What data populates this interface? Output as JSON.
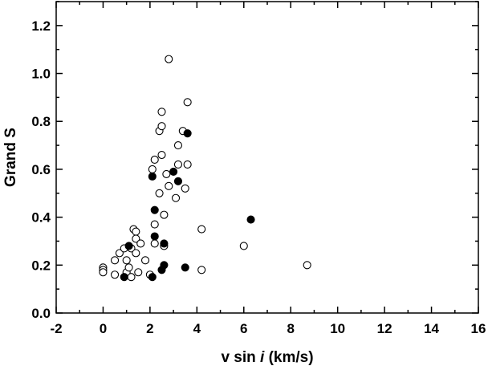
{
  "chart_data": {
    "type": "scatter",
    "title": "",
    "xlabel": "v sin i (km/s)",
    "xlabel_parts": [
      "v sin ",
      "i",
      " (km/s)"
    ],
    "ylabel": "Grand S",
    "xlim": [
      -2,
      16
    ],
    "ylim": [
      0.0,
      1.3
    ],
    "x_ticks": [
      -2,
      0,
      2,
      4,
      6,
      8,
      10,
      12,
      14,
      16
    ],
    "x_tick_labels": [
      "-2",
      "0",
      "2",
      "4",
      "6",
      "8",
      "10",
      "12",
      "14",
      "16"
    ],
    "y_ticks": [
      0.0,
      0.2,
      0.4,
      0.6,
      0.8,
      1.0,
      1.2
    ],
    "y_tick_labels": [
      "0.0",
      "0.2",
      "0.4",
      "0.6",
      "0.8",
      "1.0",
      "1.2"
    ],
    "grid": false,
    "legend": "none",
    "series": [
      {
        "marker": "open-circle",
        "color": "#000000",
        "points": [
          [
            0.0,
            0.19
          ],
          [
            0.0,
            0.18
          ],
          [
            0.0,
            0.17
          ],
          [
            0.5,
            0.22
          ],
          [
            0.5,
            0.16
          ],
          [
            0.7,
            0.25
          ],
          [
            0.9,
            0.27
          ],
          [
            1.0,
            0.22
          ],
          [
            1.0,
            0.17
          ],
          [
            1.1,
            0.19
          ],
          [
            1.2,
            0.15
          ],
          [
            1.2,
            0.27
          ],
          [
            1.3,
            0.35
          ],
          [
            1.4,
            0.34
          ],
          [
            1.4,
            0.31
          ],
          [
            1.4,
            0.25
          ],
          [
            1.5,
            0.17
          ],
          [
            1.6,
            0.29
          ],
          [
            1.8,
            0.22
          ],
          [
            2.0,
            0.16
          ],
          [
            2.1,
            0.6
          ],
          [
            2.2,
            0.64
          ],
          [
            2.2,
            0.37
          ],
          [
            2.2,
            0.29
          ],
          [
            2.4,
            0.76
          ],
          [
            2.4,
            0.5
          ],
          [
            2.5,
            0.84
          ],
          [
            2.5,
            0.78
          ],
          [
            2.5,
            0.66
          ],
          [
            2.6,
            0.41
          ],
          [
            2.6,
            0.28
          ],
          [
            2.7,
            0.58
          ],
          [
            2.8,
            1.06
          ],
          [
            2.8,
            0.53
          ],
          [
            3.1,
            0.48
          ],
          [
            3.2,
            0.7
          ],
          [
            3.2,
            0.62
          ],
          [
            3.4,
            0.76
          ],
          [
            3.5,
            0.52
          ],
          [
            3.6,
            0.88
          ],
          [
            3.6,
            0.62
          ],
          [
            4.2,
            0.35
          ],
          [
            4.2,
            0.18
          ],
          [
            6.0,
            0.28
          ],
          [
            8.7,
            0.2
          ]
        ]
      },
      {
        "marker": "filled-circle",
        "color": "#000000",
        "points": [
          [
            0.9,
            0.15
          ],
          [
            1.1,
            0.28
          ],
          [
            2.1,
            0.57
          ],
          [
            2.1,
            0.15
          ],
          [
            2.2,
            0.43
          ],
          [
            2.2,
            0.32
          ],
          [
            2.5,
            0.18
          ],
          [
            2.6,
            0.29
          ],
          [
            2.6,
            0.2
          ],
          [
            3.0,
            0.59
          ],
          [
            3.2,
            0.55
          ],
          [
            3.5,
            0.19
          ],
          [
            3.6,
            0.75
          ],
          [
            6.3,
            0.39
          ]
        ]
      }
    ]
  }
}
